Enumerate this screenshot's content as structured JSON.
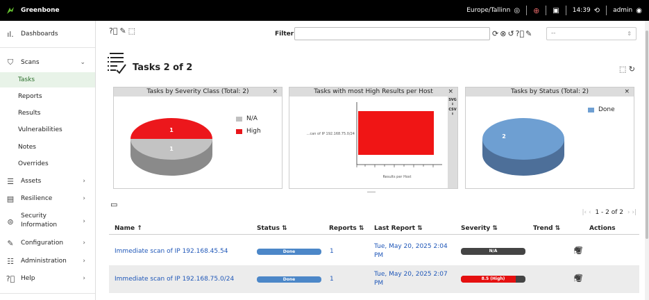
{
  "topbar": {
    "brand": "Greenbone",
    "timezone": "Europe/Tallinn",
    "time": "14:39",
    "user": "admin"
  },
  "sidebar": {
    "dashboards": "Dashboards",
    "scans": "Scans",
    "scan_items": [
      "Tasks",
      "Reports",
      "Results",
      "Vulnerabilities",
      "Notes",
      "Overrides"
    ],
    "assets": "Assets",
    "resilience": "Resilience",
    "security_info_1": "Security",
    "security_info_2": "Information",
    "configuration": "Configuration",
    "administration": "Administration",
    "help": "Help"
  },
  "filter": {
    "label": "Filter",
    "value": "",
    "select_value": "--"
  },
  "page": {
    "title": "Tasks 2 of 2"
  },
  "charts": {
    "severity_title": "Tasks by Severity Class (Total: 2)",
    "high_results_title": "Tasks with most High Results per Host",
    "status_title": "Tasks by Status (Total: 2)",
    "close": "×",
    "svg_label": "SVG",
    "csv_label": "CSV",
    "bar_ylabel": "...can of IP 192.168.75.0/24",
    "bar_xlabel": "Results per Host",
    "na_label": "N/A",
    "high_label": "High",
    "done_label": "Done"
  },
  "chart_data": [
    {
      "type": "pie",
      "title": "Tasks by Severity Class (Total: 2)",
      "categories": [
        "N/A",
        "High"
      ],
      "values": [
        1,
        1
      ],
      "colors": [
        "#c0c0c0",
        "#e8151a"
      ],
      "legend": "top-right"
    },
    {
      "type": "bar",
      "title": "Tasks with most High Results per Host",
      "categories": [
        "...can of IP 192.168.75.0/24"
      ],
      "values": [
        1
      ],
      "xlabel": "Results per Host",
      "colors": [
        "#f01515"
      ]
    },
    {
      "type": "pie",
      "title": "Tasks by Status (Total: 2)",
      "categories": [
        "Done"
      ],
      "values": [
        2
      ],
      "colors": [
        "#6e9fd2"
      ],
      "legend": "top-right"
    }
  ],
  "pagination": {
    "text": "1 - 2 of 2"
  },
  "table": {
    "headers": [
      "Name",
      "Status",
      "Reports",
      "Last Report",
      "Severity",
      "Trend",
      "Actions"
    ],
    "rows": [
      {
        "name": "Immediate scan of IP 192.168.45.54",
        "status": "Done",
        "reports": "1",
        "last_report_1": "Tue, May 20, 2025 2:04",
        "last_report_2": "PM",
        "severity": "N/A",
        "severity_fraction": 0
      },
      {
        "name": "Immediate scan of IP 192.168.75.0/24",
        "status": "Done",
        "reports": "1",
        "last_report_1": "Tue, May 20, 2025 2:07",
        "last_report_2": "PM",
        "severity": "8.5 (High)",
        "severity_fraction": 0.85
      }
    ]
  }
}
